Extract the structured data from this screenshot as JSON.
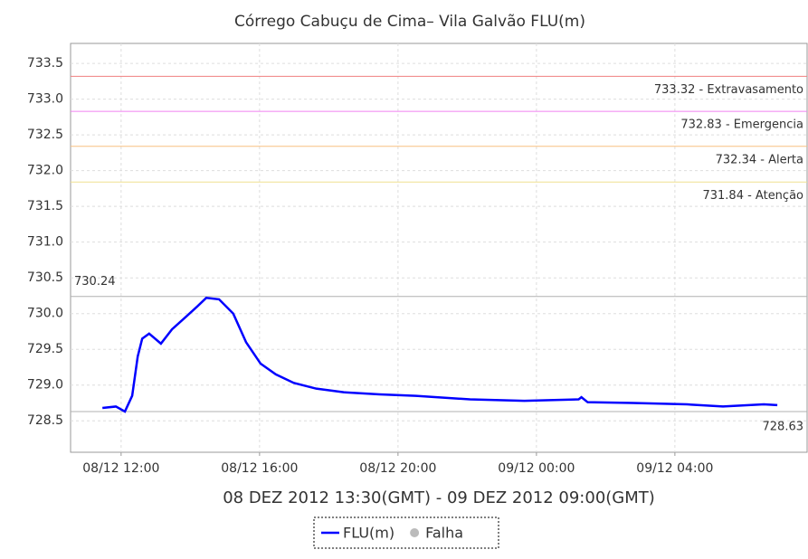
{
  "chart_data": {
    "type": "line",
    "title": "Córrego Cabuçu de Cima– Vila Galvão FLU(m)",
    "x_label": "08 DEZ 2012 13:30(GMT) - 09 DEZ 2012 09:00(GMT)",
    "xlim": [
      10.54,
      31.82
    ],
    "xticks": [
      {
        "value": 12,
        "label": "08/12 12:00"
      },
      {
        "value": 16,
        "label": "08/12 16:00"
      },
      {
        "value": 20,
        "label": "08/12 20:00"
      },
      {
        "value": 24,
        "label": "09/12 00:00"
      },
      {
        "value": 28,
        "label": "09/12 04:00"
      }
    ],
    "ylim": [
      728.06,
      733.78
    ],
    "yticks": [
      728.5,
      {
        "value": 729,
        "label": "729.0"
      },
      729.5,
      {
        "value": 730,
        "label": "730.0"
      },
      730.5,
      {
        "value": 731,
        "label": "731.0"
      },
      731.5,
      {
        "value": 732,
        "label": "732.0"
      },
      732.5,
      {
        "value": 733,
        "label": "733.0"
      },
      733.5
    ],
    "grid": true,
    "series": [
      {
        "name": "FLU(m)",
        "color": "#0000ff",
        "x": [
          11.46,
          11.85,
          12.11,
          12.32,
          12.48,
          12.61,
          12.81,
          13.15,
          13.47,
          13.86,
          14.2,
          14.46,
          14.83,
          15.24,
          15.61,
          16.03,
          16.47,
          16.99,
          17.64,
          18.43,
          19.47,
          20.52,
          22.08,
          23.65,
          25.22,
          25.3,
          25.48,
          26.78,
          28.35,
          29.39,
          30.57,
          30.96
        ],
        "values": [
          728.68,
          728.7,
          728.63,
          728.85,
          729.4,
          729.65,
          729.72,
          729.58,
          729.78,
          729.95,
          730.1,
          730.22,
          730.2,
          730.0,
          729.6,
          729.3,
          729.15,
          729.03,
          728.95,
          728.9,
          728.87,
          728.85,
          728.8,
          728.78,
          728.8,
          728.83,
          728.76,
          728.75,
          728.73,
          728.7,
          728.73,
          728.72
        ]
      },
      {
        "name": "Falha",
        "color": "#bbbbbb",
        "x": [],
        "values": []
      }
    ],
    "reference_lines": [
      {
        "value": 733.32,
        "label": "733.32 - Extravasamento",
        "color": "#f08080"
      },
      {
        "value": 732.83,
        "label": "732.83 - Emergencia",
        "color": "#f080f0"
      },
      {
        "value": 732.34,
        "label": "732.34 - Alerta",
        "color": "#f8c080"
      },
      {
        "value": 731.84,
        "label": "731.84 - Atenção",
        "color": "#f0e090"
      },
      {
        "value": 730.24,
        "color": "#b0b0b0",
        "side": "left"
      },
      {
        "value": 728.63,
        "color": "#b0b0b0",
        "side": "right"
      }
    ]
  }
}
